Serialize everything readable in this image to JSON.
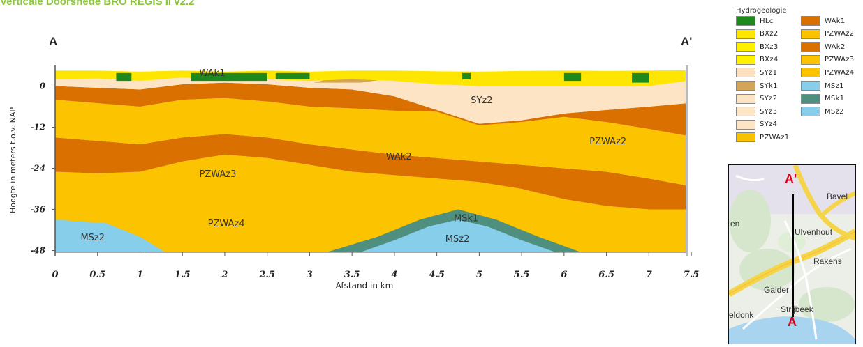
{
  "title": "Verticale Doorsnede BRO REGIS II v2.2",
  "chart_data": {
    "type": "area",
    "section_start_label": "A",
    "section_end_label": "A'",
    "xlabel": "Afstand in km",
    "ylabel": "Hoogte in meters t.o.v. NAP",
    "xlim": [
      0,
      7.45
    ],
    "ylim": [
      -48.5,
      6
    ],
    "x_ticks": [
      "0",
      "0.5",
      "1",
      "1.5",
      "2",
      "2.5",
      "3",
      "3.5",
      "4",
      "4.5",
      "5",
      "5.5",
      "6",
      "6.5",
      "7",
      "7.5"
    ],
    "y_ticks": [
      "0",
      "-12",
      "-24",
      "-36",
      "-48"
    ],
    "layer_labels": [
      {
        "text": "WAk1",
        "x": 1.7,
        "y": 3
      },
      {
        "text": "SYz2",
        "x": 4.9,
        "y": -5
      },
      {
        "text": "PZWAz2",
        "x": 6.3,
        "y": -17
      },
      {
        "text": "WAk2",
        "x": 3.9,
        "y": -21.5
      },
      {
        "text": "PZWAz3",
        "x": 1.7,
        "y": -26.5
      },
      {
        "text": "PZWAz4",
        "x": 1.8,
        "y": -41
      },
      {
        "text": "MSk1",
        "x": 4.7,
        "y": -39.5
      },
      {
        "text": "MSz2",
        "x": 0.3,
        "y": -45
      },
      {
        "text": "MSz2",
        "x": 4.6,
        "y": -45.5
      }
    ],
    "legend": {
      "title": "Hydrogeologie",
      "items": [
        {
          "name": "HLc",
          "color": "#1e8a1e"
        },
        {
          "name": "BXz2",
          "color": "#ffe600"
        },
        {
          "name": "BXz3",
          "color": "#fff000"
        },
        {
          "name": "BXz4",
          "color": "#fff200"
        },
        {
          "name": "SYz1",
          "color": "#fde0c0"
        },
        {
          "name": "SYk1",
          "color": "#d4a556"
        },
        {
          "name": "SYz2",
          "color": "#fde4c4"
        },
        {
          "name": "SYz3",
          "color": "#fde4c4"
        },
        {
          "name": "SYz4",
          "color": "#fde4c4"
        },
        {
          "name": "PZWAz1",
          "color": "#f8c200"
        },
        {
          "name": "WAk1",
          "color": "#d97000"
        },
        {
          "name": "PZWAz2",
          "color": "#fcc400"
        },
        {
          "name": "WAk2",
          "color": "#d97000"
        },
        {
          "name": "PZWAz3",
          "color": "#fcc400"
        },
        {
          "name": "PZWAz4",
          "color": "#fcc400"
        },
        {
          "name": "MSz1",
          "color": "#87ceeb"
        },
        {
          "name": "MSk1",
          "color": "#4f8f7f"
        },
        {
          "name": "MSz2",
          "color": "#87ceeb"
        }
      ]
    }
  },
  "map": {
    "marker_end": "A'",
    "marker_start": "A",
    "place_labels": [
      "Bavel",
      "Ulvenhout",
      "Rakens",
      "Galder",
      "Strijbeek",
      "en",
      "eldonk"
    ]
  }
}
